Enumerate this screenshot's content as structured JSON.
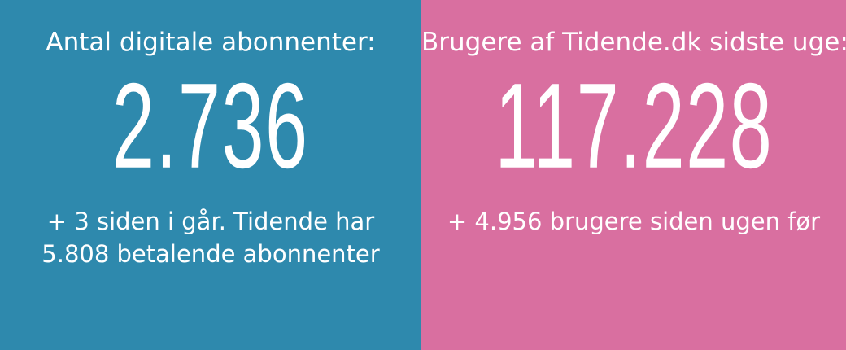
{
  "colors": {
    "left_background": "#2e89ad",
    "right_background": "#d96fa0",
    "text": "#ffffff"
  },
  "left": {
    "title": "Antal digitale abonnenter:",
    "value": "2.736",
    "note_line1": "+ 3 siden i går. Tidende har",
    "note_line2": "5.808 betalende abonnenter"
  },
  "right": {
    "title": "Brugere af Tidende.dk sidste uge:",
    "value": "117.228",
    "note_line1": "+ 4.956 brugere siden ugen før"
  }
}
